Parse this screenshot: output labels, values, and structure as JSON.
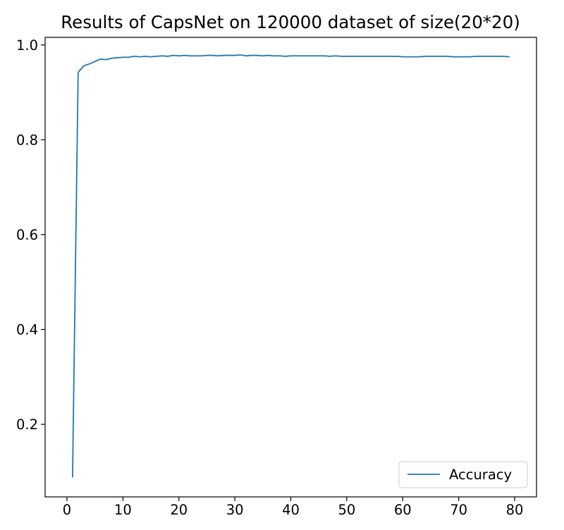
{
  "chart_data": {
    "type": "line",
    "title": "Results of CapsNet on 120000 dataset of size(20*20)",
    "xlabel": "",
    "ylabel": "",
    "xlim": [
      -3.9,
      83.9
    ],
    "ylim": [
      0.047,
      1.016
    ],
    "xticks": [
      0,
      10,
      20,
      30,
      40,
      50,
      60,
      70,
      80
    ],
    "xtick_labels": [
      "0",
      "10",
      "20",
      "30",
      "40",
      "50",
      "60",
      "70",
      "80"
    ],
    "yticks": [
      0.2,
      0.4,
      0.6,
      0.8,
      1.0
    ],
    "ytick_labels": [
      "0.2",
      "0.4",
      "0.6",
      "0.8",
      "1.0"
    ],
    "grid": false,
    "legend_position": "lower-right",
    "series": [
      {
        "name": "Accuracy",
        "color": "#1f77b4",
        "x": [
          1,
          2,
          3,
          4,
          5,
          6,
          7,
          8,
          9,
          10,
          11,
          12,
          13,
          14,
          15,
          16,
          17,
          18,
          19,
          20,
          21,
          22,
          23,
          24,
          25,
          26,
          27,
          28,
          29,
          30,
          31,
          32,
          33,
          34,
          35,
          36,
          37,
          38,
          39,
          40,
          41,
          42,
          43,
          44,
          45,
          46,
          47,
          48,
          49,
          50,
          51,
          52,
          53,
          54,
          55,
          56,
          57,
          58,
          59,
          60,
          61,
          62,
          63,
          64,
          65,
          66,
          67,
          68,
          69,
          70,
          71,
          72,
          73,
          74,
          75,
          76,
          77,
          78,
          79
        ],
        "y": [
          0.089,
          0.942,
          0.956,
          0.96,
          0.965,
          0.97,
          0.969,
          0.972,
          0.973,
          0.974,
          0.974,
          0.976,
          0.975,
          0.976,
          0.975,
          0.976,
          0.977,
          0.976,
          0.978,
          0.977,
          0.978,
          0.977,
          0.977,
          0.977,
          0.978,
          0.978,
          0.977,
          0.978,
          0.978,
          0.978,
          0.979,
          0.977,
          0.978,
          0.978,
          0.977,
          0.978,
          0.977,
          0.977,
          0.976,
          0.977,
          0.977,
          0.977,
          0.977,
          0.977,
          0.977,
          0.977,
          0.976,
          0.977,
          0.976,
          0.976,
          0.976,
          0.976,
          0.976,
          0.976,
          0.976,
          0.976,
          0.976,
          0.976,
          0.976,
          0.975,
          0.975,
          0.975,
          0.975,
          0.976,
          0.976,
          0.976,
          0.976,
          0.976,
          0.975,
          0.975,
          0.975,
          0.975,
          0.976,
          0.976,
          0.976,
          0.976,
          0.976,
          0.976,
          0.975
        ]
      }
    ]
  }
}
